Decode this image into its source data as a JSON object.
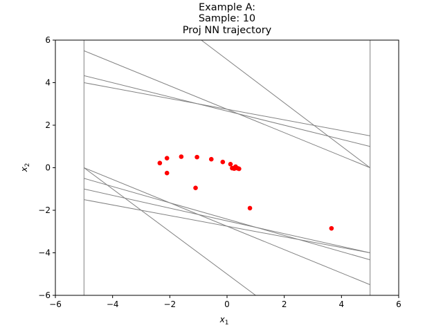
{
  "chart_data": {
    "type": "scatter",
    "title_lines": [
      "Example A:",
      "Sample: 10",
      "Proj NN trajectory"
    ],
    "xlabel": "x",
    "xlabel_sub": "1",
    "ylabel": "x",
    "ylabel_sub": "2",
    "xlim": [
      -6,
      6
    ],
    "ylim": [
      -6,
      6
    ],
    "xticks": [
      -6,
      -4,
      -2,
      0,
      2,
      4,
      6
    ],
    "yticks": [
      -6,
      -4,
      -2,
      0,
      2,
      4,
      6
    ],
    "xtick_labels": [
      "−6",
      "−4",
      "−2",
      "0",
      "2",
      "4",
      "6"
    ],
    "ytick_labels": [
      "−6",
      "−4",
      "−2",
      "0",
      "2",
      "4",
      "6"
    ],
    "grid": false,
    "marker_color": "#ff0000",
    "line_color": "#808080",
    "constraint_lines": [
      {
        "x": [
          -5,
          -5
        ],
        "y": [
          -6,
          6
        ]
      },
      {
        "x": [
          5,
          5
        ],
        "y": [
          -6,
          6
        ]
      },
      {
        "x": [
          -5,
          5
        ],
        "y": [
          5.5,
          0
        ]
      },
      {
        "x": [
          -5,
          5
        ],
        "y": [
          4.33,
          1.0
        ]
      },
      {
        "x": [
          -5,
          5
        ],
        "y": [
          4.0,
          1.5
        ]
      },
      {
        "x": [
          -5,
          5
        ],
        "y": [
          0,
          -5.5
        ]
      },
      {
        "x": [
          -5,
          5
        ],
        "y": [
          -0.5,
          -4.33
        ]
      },
      {
        "x": [
          -5,
          5
        ],
        "y": [
          -1.0,
          -4.0
        ]
      },
      {
        "x": [
          -5,
          5
        ],
        "y": [
          -1.5,
          -4.0
        ]
      },
      {
        "x": [
          -0.9,
          5
        ],
        "y": [
          6,
          0
        ]
      },
      {
        "x": [
          -5,
          1.0
        ],
        "y": [
          0,
          -6
        ]
      }
    ],
    "points": [
      {
        "x": 3.65,
        "y": -2.85
      },
      {
        "x": 0.8,
        "y": -1.9
      },
      {
        "x": -1.1,
        "y": -0.95
      },
      {
        "x": -2.1,
        "y": -0.25
      },
      {
        "x": -2.35,
        "y": 0.22
      },
      {
        "x": -2.1,
        "y": 0.45
      },
      {
        "x": -1.6,
        "y": 0.52
      },
      {
        "x": -1.05,
        "y": 0.5
      },
      {
        "x": -0.55,
        "y": 0.4
      },
      {
        "x": -0.15,
        "y": 0.27
      },
      {
        "x": 0.12,
        "y": 0.17
      },
      {
        "x": 0.3,
        "y": 0.05
      },
      {
        "x": 0.18,
        "y": -0.02
      },
      {
        "x": 0.25,
        "y": -0.04
      },
      {
        "x": 0.32,
        "y": -0.01
      },
      {
        "x": 0.38,
        "y": -0.03
      },
      {
        "x": 0.42,
        "y": -0.05
      },
      {
        "x": 0.28,
        "y": 0.02
      }
    ]
  }
}
